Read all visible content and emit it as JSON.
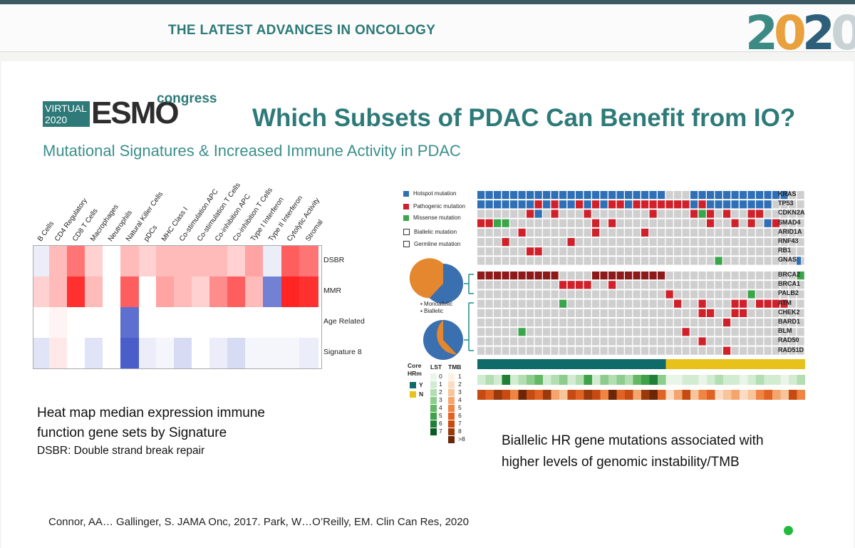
{
  "header": {
    "title": "THE LATEST ADVANCES IN ONCOLOGY",
    "year": "2020"
  },
  "logo": {
    "virtual_line1": "VIRTUAL",
    "virtual_line2": "2020",
    "brand": "ESMO",
    "suffix": "congress"
  },
  "title": "Which Subsets of PDAC Can Benefit from IO?",
  "subtitle": "Mutational Signatures & Increased Immune Activity in PDAC",
  "heatmap": {
    "columns": [
      "B Cells",
      "CD4 Regulatory",
      "CD8 T Cells",
      "Macrophages",
      "Neutrophils",
      "Natural Killer Cells",
      "pDCs",
      "MHC Class I",
      "Co-stimulation APC",
      "Co-stimulation T Cells",
      "Co-inhibition APC",
      "Co-inhibition T Cells",
      "Type I Interferon",
      "Type II Interferon",
      "Cytolytic Activity",
      "Stromal"
    ],
    "rows": [
      "DSBR",
      "MMR",
      "Age Related",
      "Signature 8"
    ],
    "values": [
      [
        -0.1,
        0.3,
        0.6,
        0.2,
        0.0,
        0.3,
        0.2,
        0.3,
        0.3,
        0.3,
        0.3,
        0.2,
        0.4,
        -0.1,
        0.7,
        0.6
      ],
      [
        0.2,
        0.3,
        0.9,
        0.3,
        0.0,
        0.7,
        0.0,
        0.4,
        0.3,
        0.2,
        0.5,
        0.7,
        0.3,
        -0.7,
        0.95,
        0.9
      ],
      [
        0.0,
        0.05,
        0.0,
        0.0,
        0.0,
        -0.8,
        0.0,
        0.0,
        0.0,
        0.0,
        0.0,
        0.0,
        0.0,
        0.0,
        0.0,
        0.0
      ],
      [
        -0.15,
        0.1,
        0.0,
        -0.15,
        0.0,
        -0.9,
        -0.1,
        -0.05,
        -0.2,
        0.0,
        -0.1,
        -0.2,
        -0.05,
        -0.05,
        -0.05,
        -0.1
      ]
    ]
  },
  "caption_left": {
    "line1": "Heat map median expression immune",
    "line2": "function gene sets by Signature",
    "line3": "DSBR: Double strand break repair"
  },
  "oncoprint": {
    "legend": [
      {
        "label": "Hotspot mutation",
        "color": "#2f6fb5"
      },
      {
        "label": "Pathogenic mutation",
        "color": "#d0202a"
      },
      {
        "label": "Missense mutation",
        "color": "#3aa54a"
      },
      {
        "label": "Biallelic mutation",
        "color": "#ffffff"
      },
      {
        "label": "Germline mutation",
        "color": "#ffffff"
      }
    ],
    "genes_top": [
      "KRAS",
      "TP53",
      "CDKN2A",
      "SMAD4",
      "ARID1A",
      "RNF43",
      "RB1",
      "GNAS"
    ],
    "genes_hr": [
      "BRCA2",
      "BRCA1",
      "PALB2",
      "ATM",
      "CHEK2",
      "BARD1",
      "BLM",
      "RAD50",
      "RAD51D"
    ],
    "pie_legend": [
      "Monoallelic",
      "Biallelic"
    ],
    "pie_monoallelic_fraction": 0.35,
    "pie_biallelic_fraction_top": 0.3,
    "pie_biallelic_fraction_bottom": 0.62,
    "core_label_line1": "Core",
    "core_label_line2": "HRm",
    "core_y": "Y",
    "core_n": "N",
    "lst_label": "LST",
    "tmb_label": "TMB",
    "lst_scale": [
      "0",
      "1",
      "2",
      "3",
      "4",
      "5",
      "6",
      "7"
    ],
    "tmb_scale": [
      "1",
      "2",
      "3",
      "4",
      "5",
      "6",
      "7",
      "8",
      ">8"
    ]
  },
  "caption_right": {
    "line1": "Biallelic HR gene mutations associated with",
    "line2": "higher levels of genomic instability/TMB"
  },
  "citation": "Connor, AA… Gallinger, S.  JAMA Onc, 2017.  Park, W…O’Reilly, EM. Clin Can Res, 2020"
}
